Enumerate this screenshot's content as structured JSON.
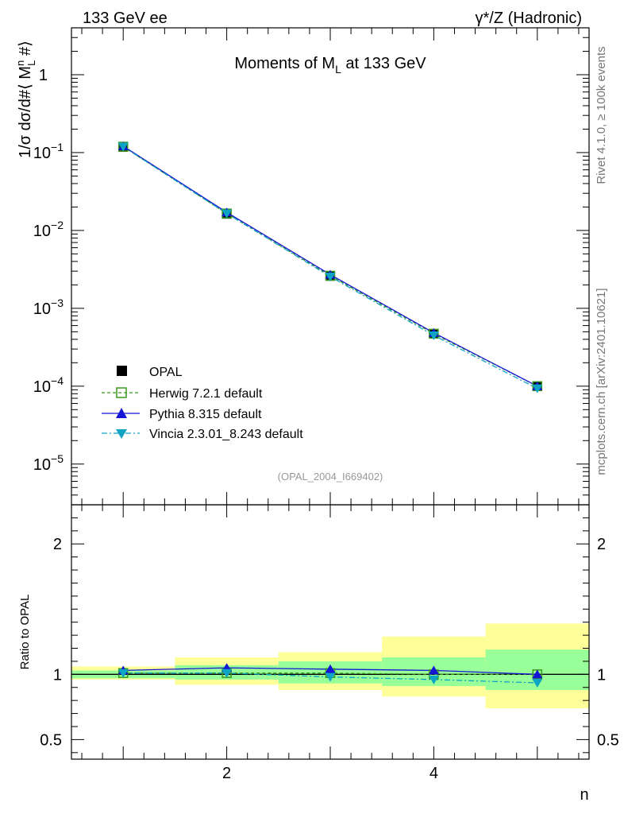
{
  "header": {
    "left_label": "133 GeV ee",
    "right_label": "γ*/Z (Hadronic)"
  },
  "side_labels": {
    "rivet": "Rivet 4.1.0, ≥ 100k events",
    "mcplots": "mcplots.cern.ch [arXiv:2401.10621]"
  },
  "colors": {
    "data": "#000000",
    "herwig": "#3a9a1a",
    "pythia": "#1515d6",
    "vincia": "#10a4c4",
    "band_inner": "#99ff99",
    "band_outer": "#ffff99"
  },
  "chart_data": [
    {
      "type": "line",
      "panel": "main",
      "title": "Moments of M_L at 133 GeV",
      "ylabel": "1/σ  dσ/d#⟨ M_L^n #⟩",
      "xlabel": "n",
      "yscale": "log",
      "ylim": [
        3e-06,
        4
      ],
      "xlim": [
        0.5,
        5.5
      ],
      "yticks": [
        {
          "value": 1,
          "label": "1"
        },
        {
          "value": 0.1,
          "label": "10",
          "exp": "−1"
        },
        {
          "value": 0.01,
          "label": "10",
          "exp": "−2"
        },
        {
          "value": 0.001,
          "label": "10",
          "exp": "−3"
        },
        {
          "value": 0.0001,
          "label": "10",
          "exp": "−4"
        },
        {
          "value": 1e-05,
          "label": "10",
          "exp": "−5"
        }
      ],
      "x": [
        1,
        2,
        3,
        4,
        5
      ],
      "series": [
        {
          "name": "OPAL",
          "key": "data",
          "values": [
            0.118,
            0.0163,
            0.0026,
            0.00047,
            0.0001
          ]
        },
        {
          "name": "Herwig 7.2.1 default",
          "key": "herwig",
          "values": [
            0.119,
            0.0165,
            0.00262,
            0.000472,
            0.0001
          ]
        },
        {
          "name": "Pythia 8.315 default",
          "key": "pythia",
          "values": [
            0.121,
            0.0171,
            0.00271,
            0.000484,
            0.0001
          ]
        },
        {
          "name": "Vincia 2.3.01_8.243 default",
          "key": "vincia",
          "values": [
            0.119,
            0.0165,
            0.00255,
            0.000449,
            9.35e-05
          ]
        }
      ],
      "annotation": "(OPAL_2004_I669402)"
    },
    {
      "type": "line",
      "panel": "ratio",
      "ylabel": "Ratio to OPAL",
      "xlabel": "n",
      "ylim": [
        0.35,
        2.3
      ],
      "xlim": [
        0.5,
        5.5
      ],
      "yticks": [
        {
          "value": 0.5,
          "label": "0.5"
        },
        {
          "value": 1,
          "label": "1"
        },
        {
          "value": 2,
          "label": "2"
        }
      ],
      "xticks": [
        {
          "value": 2,
          "label": "2"
        },
        {
          "value": 4,
          "label": "4"
        }
      ],
      "x": [
        1,
        2,
        3,
        4,
        5
      ],
      "bands": {
        "inner": [
          [
            0.97,
            1.03
          ],
          [
            0.96,
            1.07
          ],
          [
            0.93,
            1.1
          ],
          [
            0.91,
            1.13
          ],
          [
            0.88,
            1.19
          ]
        ],
        "outer": [
          [
            0.96,
            1.06
          ],
          [
            0.92,
            1.13
          ],
          [
            0.88,
            1.17
          ],
          [
            0.83,
            1.29
          ],
          [
            0.74,
            1.39
          ]
        ]
      },
      "series": [
        {
          "name": "Herwig 7.2.1 default",
          "key": "herwig",
          "values": [
            1.01,
            1.01,
            1.01,
            1.0,
            1.0
          ]
        },
        {
          "name": "Pythia 8.315 default",
          "key": "pythia",
          "values": [
            1.03,
            1.05,
            1.04,
            1.03,
            1.0
          ]
        },
        {
          "name": "Vincia 2.3.01_8.243 default",
          "key": "vincia",
          "values": [
            1.01,
            1.01,
            0.98,
            0.96,
            0.935
          ]
        }
      ]
    }
  ]
}
